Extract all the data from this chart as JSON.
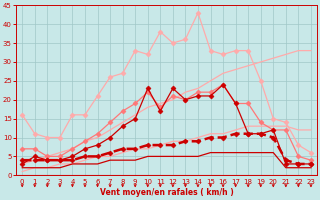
{
  "background_color": "#c8e8e8",
  "grid_color": "#a0c8c8",
  "xlabel": "Vent moyen/en rafales ( km/h )",
  "xlabel_color": "#cc0000",
  "tick_color": "#cc0000",
  "xlim": [
    -0.5,
    23.5
  ],
  "ylim": [
    0,
    45
  ],
  "yticks": [
    0,
    5,
    10,
    15,
    20,
    25,
    30,
    35,
    40,
    45
  ],
  "xticks": [
    0,
    1,
    2,
    3,
    4,
    5,
    6,
    7,
    8,
    9,
    10,
    11,
    12,
    13,
    14,
    15,
    16,
    17,
    18,
    19,
    20,
    21,
    22,
    23
  ],
  "series": [
    {
      "x": [
        0,
        1,
        2,
        3,
        4,
        5,
        6,
        7,
        8,
        9,
        10,
        11,
        12,
        13,
        14,
        15,
        16,
        17,
        18,
        19,
        20,
        21,
        22,
        23
      ],
      "y": [
        3,
        4,
        5,
        6,
        7,
        9,
        10,
        12,
        14,
        16,
        18,
        19,
        20,
        22,
        23,
        25,
        27,
        28,
        29,
        30,
        31,
        32,
        33,
        33
      ],
      "color": "#ffaaaa",
      "linewidth": 0.9,
      "marker": null,
      "markersize": 0,
      "linestyle": "-"
    },
    {
      "x": [
        0,
        1,
        2,
        3,
        4,
        5,
        6,
        7,
        8,
        9,
        10,
        11,
        12,
        13,
        14,
        15,
        16,
        17,
        18,
        19,
        20,
        21,
        22,
        23
      ],
      "y": [
        1,
        2,
        2,
        3,
        3,
        4,
        5,
        5,
        6,
        7,
        7,
        8,
        9,
        9,
        10,
        11,
        11,
        12,
        13,
        13,
        13,
        13,
        12,
        12
      ],
      "color": "#ffaaaa",
      "linewidth": 0.9,
      "marker": null,
      "markersize": 0,
      "linestyle": "-"
    },
    {
      "x": [
        0,
        1,
        2,
        3,
        4,
        5,
        6,
        7,
        8,
        9,
        10,
        11,
        12,
        13,
        14,
        15,
        16,
        17,
        18,
        19,
        20,
        21,
        22,
        23
      ],
      "y": [
        16,
        11,
        10,
        10,
        16,
        16,
        21,
        26,
        27,
        33,
        32,
        38,
        35,
        36,
        43,
        33,
        32,
        33,
        33,
        25,
        15,
        14,
        8,
        6
      ],
      "color": "#ffaaaa",
      "linewidth": 0.9,
      "marker": "D",
      "markersize": 2.5,
      "linestyle": "-"
    },
    {
      "x": [
        0,
        1,
        2,
        3,
        4,
        5,
        6,
        7,
        8,
        9,
        10,
        11,
        12,
        13,
        14,
        15,
        16,
        17,
        18,
        19,
        20,
        21,
        22,
        23
      ],
      "y": [
        7,
        7,
        5,
        5,
        7,
        9,
        11,
        14,
        17,
        19,
        22,
        18,
        21,
        20,
        22,
        22,
        24,
        19,
        19,
        14,
        12,
        12,
        5,
        4
      ],
      "color": "#ff7777",
      "linewidth": 0.9,
      "marker": "D",
      "markersize": 2.5,
      "linestyle": "-"
    },
    {
      "x": [
        0,
        1,
        2,
        3,
        4,
        5,
        6,
        7,
        8,
        9,
        10,
        11,
        12,
        13,
        14,
        15,
        16,
        17,
        18,
        19,
        20,
        21,
        22,
        23
      ],
      "y": [
        3,
        5,
        4,
        4,
        5,
        7,
        8,
        10,
        13,
        15,
        23,
        17,
        23,
        20,
        21,
        21,
        24,
        19,
        11,
        11,
        12,
        3,
        3,
        3
      ],
      "color": "#cc0000",
      "linewidth": 0.9,
      "marker": "D",
      "markersize": 2.5,
      "linestyle": "-"
    },
    {
      "x": [
        0,
        1,
        2,
        3,
        4,
        5,
        6,
        7,
        8,
        9,
        10,
        11,
        12,
        13,
        14,
        15,
        16,
        17,
        18,
        19,
        20,
        21,
        22,
        23
      ],
      "y": [
        4,
        4,
        4,
        4,
        4,
        5,
        5,
        6,
        7,
        7,
        8,
        8,
        8,
        9,
        9,
        10,
        10,
        11,
        11,
        11,
        10,
        4,
        3,
        3
      ],
      "color": "#cc0000",
      "linewidth": 1.8,
      "marker": "D",
      "markersize": 2.5,
      "linestyle": "--"
    },
    {
      "x": [
        0,
        1,
        2,
        3,
        4,
        5,
        6,
        7,
        8,
        9,
        10,
        11,
        12,
        13,
        14,
        15,
        16,
        17,
        18,
        19,
        20,
        21,
        22,
        23
      ],
      "y": [
        2,
        2,
        2,
        2,
        3,
        3,
        3,
        4,
        4,
        4,
        5,
        5,
        5,
        5,
        5,
        6,
        6,
        6,
        6,
        6,
        6,
        2,
        2,
        2
      ],
      "color": "#cc0000",
      "linewidth": 0.9,
      "marker": null,
      "markersize": 0,
      "linestyle": "-"
    }
  ],
  "arrow_color": "#cc0000"
}
